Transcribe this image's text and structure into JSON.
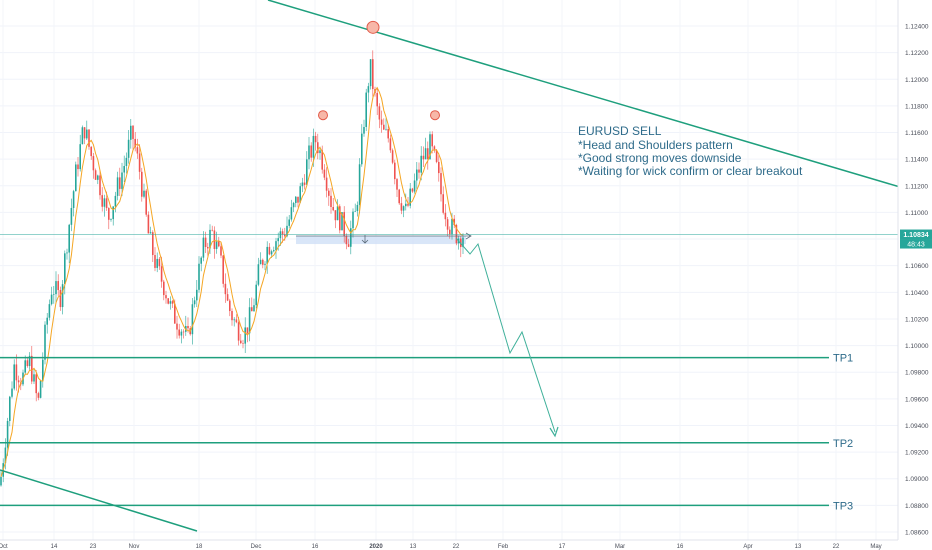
{
  "chart_data": {
    "type": "candlestick",
    "symbol_hint": "EURUSD",
    "y_axis": {
      "ticks": [
        "1.12400",
        "1.12200",
        "1.12000",
        "1.11800",
        "1.11600",
        "1.11400",
        "1.11200",
        "1.11000",
        "1.10800",
        "1.10600",
        "1.10400",
        "1.10200",
        "1.10000",
        "1.09800",
        "1.09600",
        "1.09400",
        "1.09200",
        "1.09000",
        "1.08800",
        "1.08600"
      ],
      "range": [
        1.086,
        1.125
      ]
    },
    "x_axis": {
      "ticks": [
        "Oct",
        "14",
        "23",
        "Nov",
        "18",
        "Dec",
        "16",
        "2020",
        "13",
        "22",
        "Feb",
        "17",
        "Mar",
        "16",
        "Apr",
        "13",
        "22",
        "May"
      ]
    },
    "current_price": "1.10834",
    "countdown": "48:43",
    "annotation": {
      "title": "EURUSD SELL",
      "lines": [
        "*Head and Shoulders pattern",
        "*Good strong moves downside",
        "*Waiting for wick confirm or clear breakout"
      ]
    },
    "targets": [
      {
        "label": "TP1",
        "price": 1.0991
      },
      {
        "label": "TP2",
        "price": 1.0927
      },
      {
        "label": "TP3",
        "price": 1.088
      }
    ],
    "pattern": {
      "shoulders_and_head": [
        {
          "name": "left-shoulder",
          "date_tick": "16",
          "price": 1.1173
        },
        {
          "name": "head",
          "date_tick": "2020",
          "price": 1.1239
        },
        {
          "name": "right-shoulder",
          "date_tick": "22",
          "price": 1.1173
        }
      ],
      "neckline_price": 1.108
    },
    "colors": {
      "bull": "#26a69a",
      "bear": "#ef5350",
      "trendline": "#1e9f7d",
      "tp_line": "#1e9f7d",
      "ma": "#f5a623",
      "price_tag": "#26a69a",
      "neckline_zone": "#c9dcf5",
      "projection": "#3fb09a"
    }
  }
}
